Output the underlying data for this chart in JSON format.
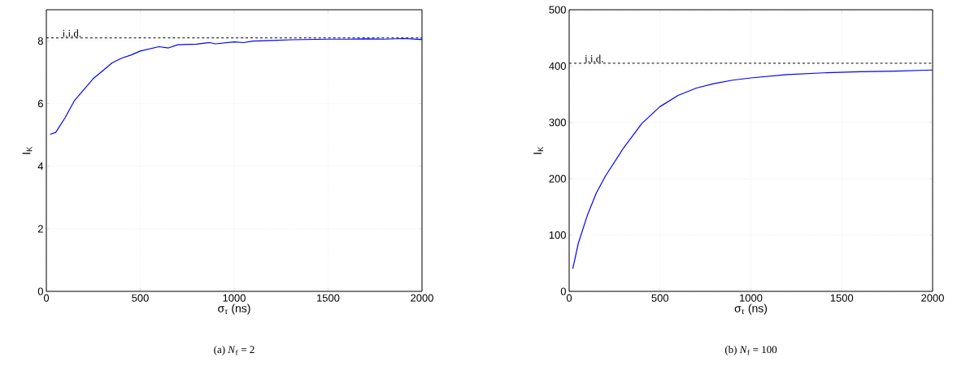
{
  "chart_data": [
    {
      "type": "line",
      "title": "(a) *N*$_{f}$ = 2",
      "xlabel": "σ$_{τ}$ (ns)",
      "ylabel": "I$_{K}$",
      "xlim": [
        0,
        2000
      ],
      "ylim": [
        0,
        9
      ],
      "xticks": [
        0,
        500,
        1000,
        1500,
        2000
      ],
      "yticks": [
        0,
        2,
        4,
        6,
        8
      ],
      "grid": true,
      "line_style": "solid",
      "ref_lines": [
        {
          "axis": "y",
          "value": 8.1,
          "label": "i.i.d.",
          "line_style": "dashed",
          "color": "#000000"
        }
      ],
      "series": [
        {
          "color": "#0000ff",
          "x": [
            20,
            50,
            100,
            150,
            200,
            250,
            300,
            350,
            400,
            450,
            500,
            550,
            600,
            650,
            700,
            800,
            870,
            900,
            1000,
            1050,
            1100,
            1200,
            1300,
            1400,
            1500,
            1600,
            1700,
            1800,
            1900,
            2000
          ],
          "values": [
            5.02,
            5.08,
            5.55,
            6.1,
            6.45,
            6.8,
            7.05,
            7.3,
            7.45,
            7.55,
            7.68,
            7.75,
            7.82,
            7.78,
            7.88,
            7.9,
            7.95,
            7.91,
            7.97,
            7.95,
            8.0,
            8.02,
            8.04,
            8.05,
            8.06,
            8.06,
            8.07,
            8.06,
            8.08,
            8.05
          ]
        }
      ]
    },
    {
      "type": "line",
      "title": "(b) *N*$_{f}$ = 100",
      "xlabel": "σ$_{τ}$ (ns)",
      "ylabel": "I$_{K}$",
      "xlim": [
        0,
        2000
      ],
      "ylim": [
        0,
        500
      ],
      "xticks": [
        0,
        500,
        1000,
        1500,
        2000
      ],
      "yticks": [
        0,
        100,
        200,
        300,
        400,
        500
      ],
      "grid": true,
      "line_style": "solid",
      "ref_lines": [
        {
          "axis": "y",
          "value": 405,
          "label": "i.i.d.",
          "line_style": "dashed",
          "color": "#000000"
        }
      ],
      "series": [
        {
          "color": "#0000ff",
          "x": [
            20,
            50,
            100,
            150,
            200,
            300,
            400,
            500,
            600,
            700,
            800,
            900,
            1000,
            1200,
            1400,
            1600,
            1800,
            2000
          ],
          "values": [
            40,
            85,
            135,
            175,
            205,
            255,
            298,
            328,
            348,
            361,
            369,
            375,
            379,
            385,
            388,
            390,
            391,
            393
          ]
        }
      ]
    }
  ]
}
